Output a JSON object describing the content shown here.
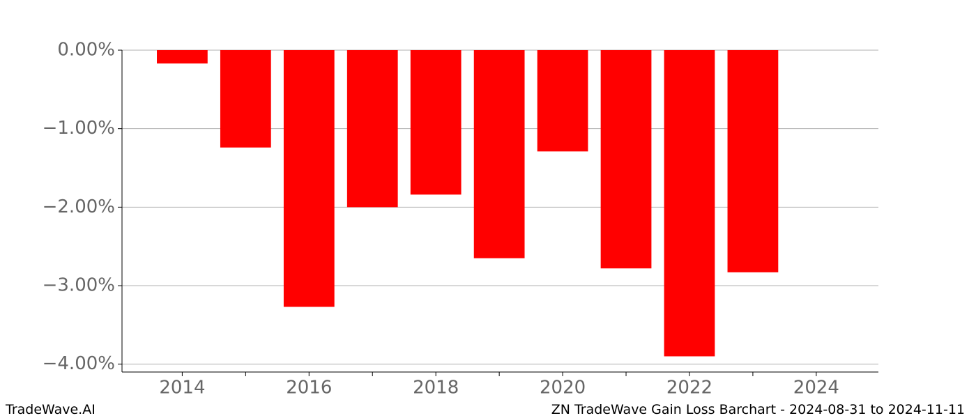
{
  "chart_data": {
    "type": "bar",
    "x": [
      2014,
      2015,
      2016,
      2017,
      2018,
      2019,
      2020,
      2021,
      2022,
      2023
    ],
    "values": [
      -0.17,
      -1.24,
      -3.27,
      -2.0,
      -1.84,
      -2.65,
      -1.29,
      -2.78,
      -3.9,
      -2.83
    ],
    "color": "#ff0000",
    "xlim": [
      2013.05,
      2024.98
    ],
    "xticks": [
      2014,
      2016,
      2018,
      2020,
      2022,
      2024
    ],
    "xticks_minor": [
      2015,
      2017,
      2019,
      2021,
      2023
    ],
    "ylim": [
      -4.1,
      0
    ],
    "yticks": [
      {
        "value": 0,
        "label": "0.00%"
      },
      {
        "value": -1,
        "label": "−1.00%"
      },
      {
        "value": -2,
        "label": "−2.00%"
      },
      {
        "value": -3,
        "label": "−3.00%"
      },
      {
        "value": -4,
        "label": "−4.00%"
      }
    ],
    "grid": true,
    "footer_left": "TradeWave.AI",
    "footer_right": "ZN TradeWave Gain Loss Barchart - 2024-08-31 to 2024-11-11"
  }
}
